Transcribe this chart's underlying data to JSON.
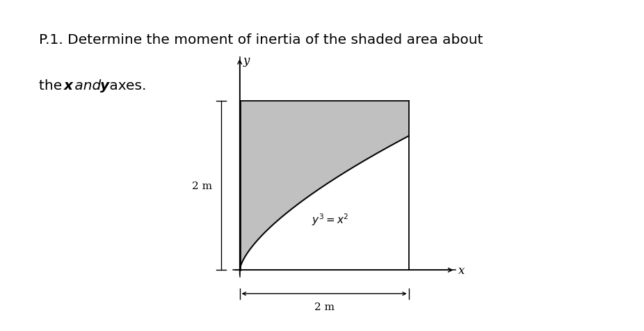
{
  "title_line1": "P.1. Determine the moment of inertia of the shaded area about",
  "title_line2_pre": "the ",
  "title_line2_x": "x",
  "title_line2_and": " and ",
  "title_line2_y": "y",
  "title_line2_post": " axes.",
  "xmax": 2.0,
  "ymax": 2.0,
  "shade_color": "#c0c0c0",
  "curve_label": "y³ = x²",
  "dim_label_x": "2 m",
  "dim_label_y": "2 m",
  "background_color": "#ffffff",
  "title_fontsize": 14.5,
  "annot_fontsize": 11,
  "axis_label_fontsize": 12
}
